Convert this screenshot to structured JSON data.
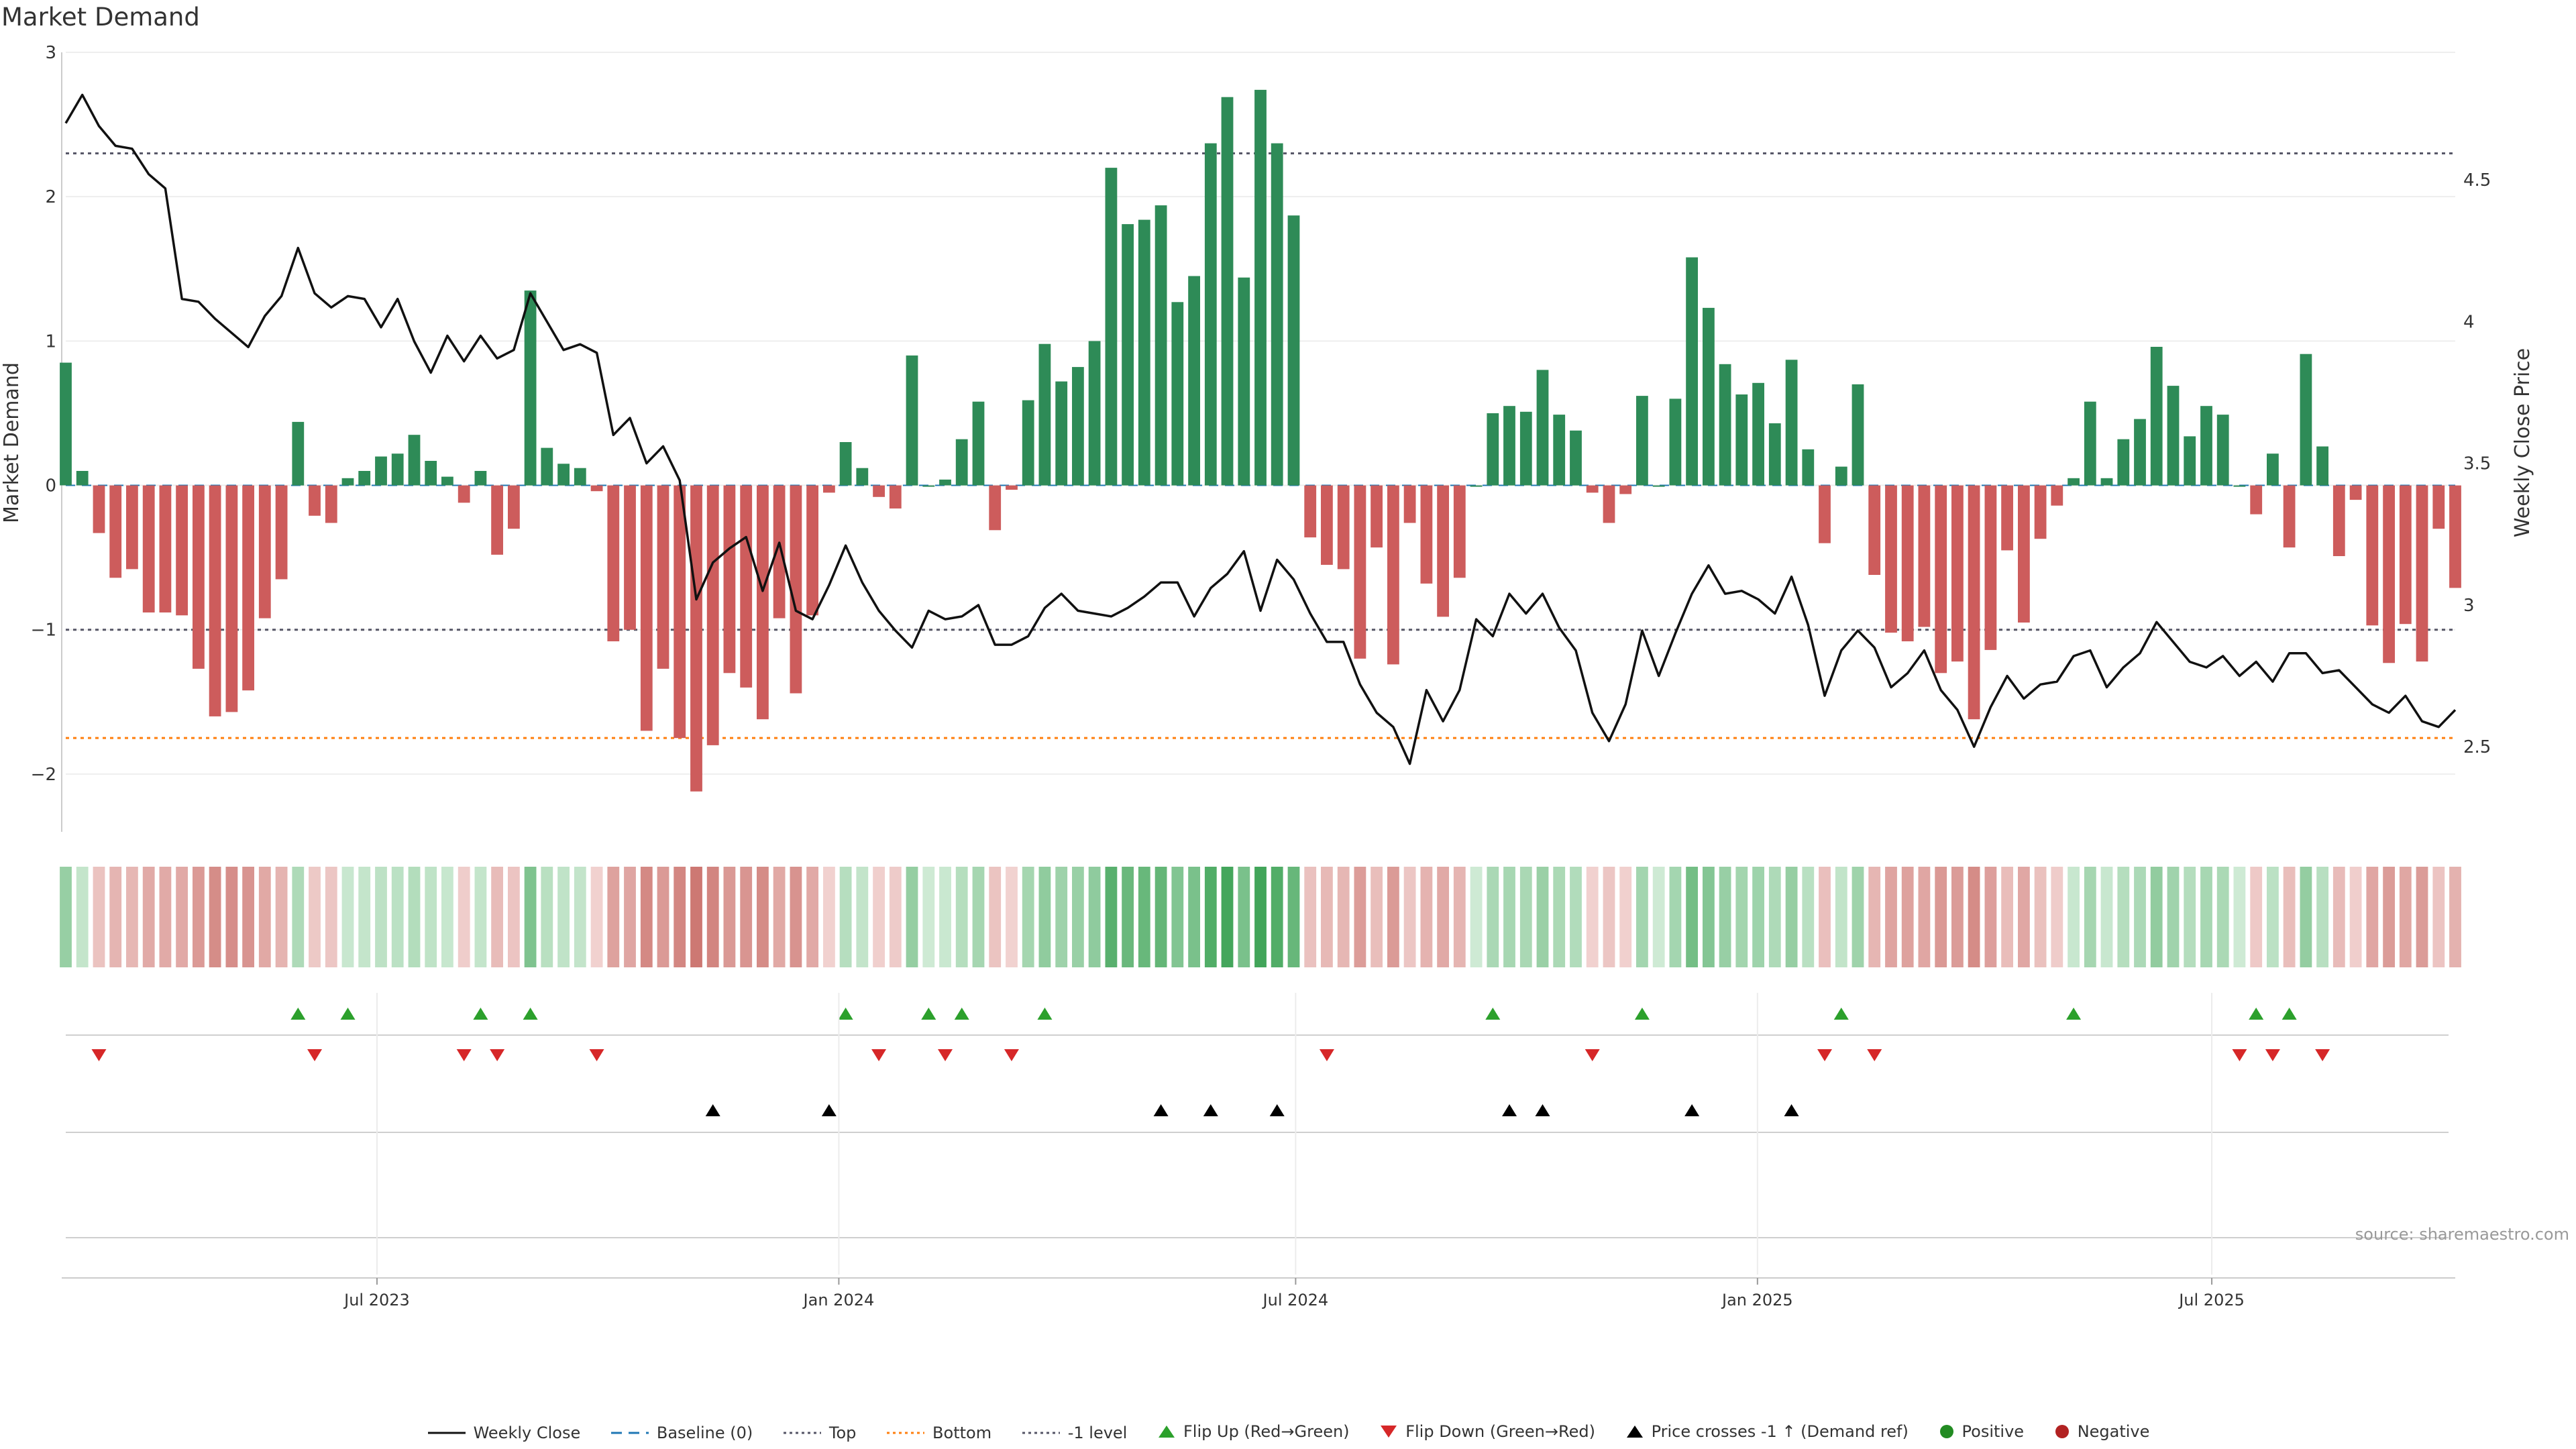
{
  "title": "Market Demand",
  "source": "source: sharemaestro.com",
  "legend": {
    "weekly_close": "Weekly Close",
    "baseline": "Baseline (0)",
    "top": "Top",
    "bottom": "Bottom",
    "minus1": "-1 level",
    "flip_up": "Flip Up (Red→Green)",
    "flip_down": "Flip Down (Green→Red)",
    "price_cross": "Price crosses -1 ↑ (Demand ref)",
    "positive": "Positive",
    "negative": "Negative"
  },
  "colors": {
    "positive": "#2e8b57",
    "negative": "#cd5c5c",
    "price": "#111111",
    "flip_up": "#2ca02c",
    "flip_down": "#d62728",
    "bottom": "#ff7f0e",
    "reference": "#555566"
  },
  "chart_data": {
    "type": "bar",
    "title": "Market Demand",
    "ylabel_left": "Market Demand",
    "ylabel_right": "Weekly Close Price",
    "ylim_left": [
      -2.4,
      3
    ],
    "ylim_right": [
      2.2,
      4.95
    ],
    "yticks_left": [
      -2,
      -1,
      0,
      1,
      2,
      3
    ],
    "yticks_left_labels": [
      "−2",
      "−1",
      "0",
      "1",
      "2",
      "3"
    ],
    "yticks_right": [
      2.5,
      3,
      3.5,
      4,
      4.5
    ],
    "yticks_right_labels": [
      "2.5",
      "3",
      "3.5",
      "4",
      "4.5"
    ],
    "x_start": "2023-02-27",
    "x_end": "2025-10-06",
    "x_tick_labels": [
      "Jul 2023",
      "Jan 2024",
      "Jul 2024",
      "Jan 2025",
      "Jul 2025"
    ],
    "x_tick_dates": [
      "2023-07-01",
      "2024-01-01",
      "2024-07-01",
      "2025-01-01",
      "2025-07-01"
    ],
    "reference_lines": {
      "top": 2.3,
      "bottom": -1.75,
      "minus_one": -1.0,
      "baseline": 0
    },
    "demand": [
      0.85,
      0.1,
      -0.33,
      -0.64,
      -0.58,
      -0.88,
      -0.88,
      -0.9,
      -1.27,
      -1.6,
      -1.57,
      -1.42,
      -0.92,
      -0.65,
      0.44,
      -0.21,
      -0.26,
      0.05,
      0.1,
      0.2,
      0.22,
      0.35,
      0.17,
      0.06,
      -0.12,
      0.1,
      -0.48,
      -0.3,
      1.35,
      0.26,
      0.15,
      0.12,
      -0.04,
      -1.08,
      -1.0,
      -1.7,
      -1.27,
      -1.75,
      -2.12,
      -1.8,
      -1.3,
      -1.4,
      -1.62,
      -0.92,
      -1.44,
      -0.9,
      -0.05,
      0.3,
      0.12,
      -0.08,
      -0.16,
      0.9,
      0.0,
      0.04,
      0.32,
      0.58,
      -0.31,
      -0.03,
      0.59,
      0.98,
      0.72,
      0.82,
      1.0,
      2.2,
      1.81,
      1.84,
      1.94,
      1.27,
      1.45,
      2.37,
      2.69,
      1.44,
      2.74,
      2.37,
      1.87,
      -0.36,
      -0.55,
      -0.58,
      -1.2,
      -0.43,
      -1.24,
      -0.26,
      -0.68,
      -0.91,
      -0.64,
      0.0,
      0.5,
      0.55,
      0.51,
      0.8,
      0.49,
      0.38,
      -0.05,
      -0.26,
      -0.06,
      0.62,
      0.0,
      0.6,
      1.58,
      1.23,
      0.84,
      0.63,
      0.71,
      0.43,
      0.87,
      0.25,
      -0.4,
      0.13,
      0.7,
      -0.62,
      -1.02,
      -1.08,
      -0.98,
      -1.3,
      -1.22,
      -1.62,
      -1.14,
      -0.45,
      -0.95,
      -0.37,
      -0.14,
      0.05,
      0.58,
      0.05,
      0.32,
      0.46,
      0.96,
      0.69,
      0.34,
      0.55,
      0.49,
      0.0,
      -0.2,
      0.22,
      -0.43,
      0.91,
      0.27,
      -0.49,
      -0.1,
      -0.97,
      -1.23,
      -0.96,
      -1.22,
      -0.3,
      -0.71
    ],
    "price": [
      4.7,
      4.8,
      4.69,
      4.62,
      4.61,
      4.52,
      4.47,
      4.08,
      4.07,
      4.01,
      3.96,
      3.91,
      4.02,
      4.09,
      4.26,
      4.1,
      4.05,
      4.09,
      4.08,
      3.98,
      4.08,
      3.93,
      3.82,
      3.95,
      3.86,
      3.95,
      3.87,
      3.9,
      4.1,
      4.0,
      3.9,
      3.92,
      3.89,
      3.6,
      3.66,
      3.5,
      3.56,
      3.44,
      3.02,
      3.15,
      3.2,
      3.24,
      3.05,
      3.22,
      2.98,
      2.95,
      3.07,
      3.21,
      3.08,
      2.98,
      2.91,
      2.85,
      2.98,
      2.95,
      2.96,
      3.0,
      2.86,
      2.86,
      2.89,
      2.99,
      3.04,
      2.98,
      2.97,
      2.96,
      2.99,
      3.03,
      3.08,
      3.08,
      2.96,
      3.06,
      3.11,
      3.19,
      2.98,
      3.16,
      3.09,
      2.97,
      2.87,
      2.87,
      2.72,
      2.62,
      2.57,
      2.44,
      2.7,
      2.59,
      2.7,
      2.95,
      2.89,
      3.04,
      2.97,
      3.04,
      2.92,
      2.84,
      2.62,
      2.52,
      2.65,
      2.91,
      2.75,
      2.9,
      3.04,
      3.14,
      3.04,
      3.05,
      3.02,
      2.97,
      3.1,
      2.93,
      2.68,
      2.84,
      2.91,
      2.85,
      2.71,
      2.76,
      2.84,
      2.7,
      2.63,
      2.5,
      2.64,
      2.75,
      2.67,
      2.72,
      2.73,
      2.82,
      2.84,
      2.71,
      2.78,
      2.83,
      2.94,
      2.87,
      2.8,
      2.78,
      2.82,
      2.75,
      2.8,
      2.73,
      2.83,
      2.83,
      2.76,
      2.77,
      2.71,
      2.65,
      2.62,
      2.68,
      2.59,
      2.57,
      2.63
    ],
    "flip_up_weeks": [
      14,
      17,
      25,
      28,
      47,
      52,
      54,
      59,
      86,
      95,
      107,
      121,
      132,
      134
    ],
    "flip_down_weeks": [
      2,
      15,
      24,
      26,
      32,
      49,
      53,
      57,
      76,
      92,
      106,
      109,
      131,
      133,
      136
    ],
    "price_cross_weeks": [
      39,
      46,
      66,
      69,
      73,
      87,
      89,
      98,
      104
    ]
  }
}
